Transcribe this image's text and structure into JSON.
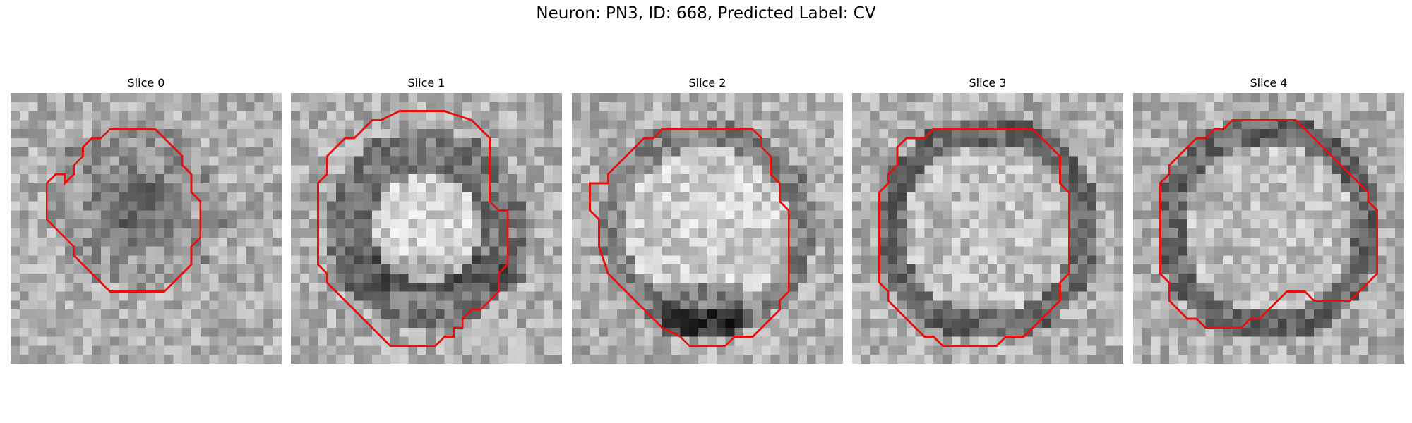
{
  "figure": {
    "title": "Neuron: PN3, ID: 668, Predicted Label: CV",
    "contour_color": "#e8100c",
    "colormap": "gray"
  },
  "panels": [
    {
      "title": "Slice 0",
      "seed": 11,
      "pattern": "dark-blob"
    },
    {
      "title": "Slice 1",
      "seed": 23,
      "pattern": "bright-core-dark-crescent"
    },
    {
      "title": "Slice 2",
      "seed": 37,
      "pattern": "bright-core-dark-bottom"
    },
    {
      "title": "Slice 3",
      "seed": 41,
      "pattern": "dark-ring"
    },
    {
      "title": "Slice 4",
      "seed": 59,
      "pattern": "dark-ring"
    }
  ]
}
